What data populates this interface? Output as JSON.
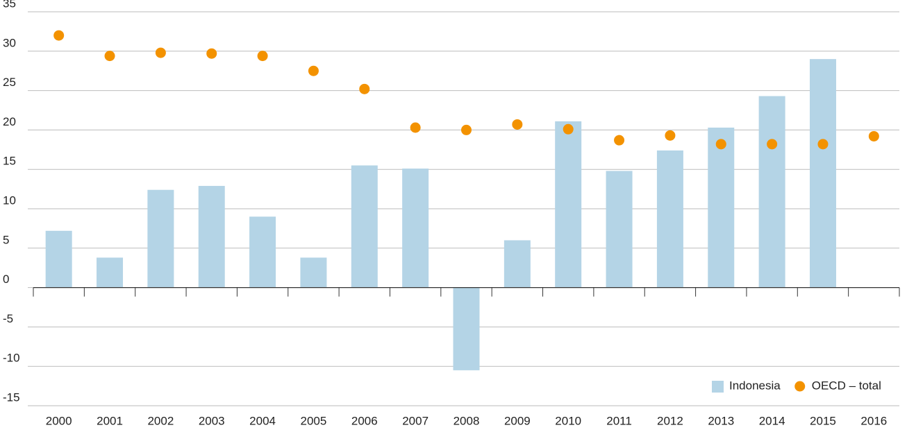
{
  "chart_data": {
    "type": "bar",
    "categories": [
      "2000",
      "2001",
      "2002",
      "2003",
      "2004",
      "2005",
      "2006",
      "2007",
      "2008",
      "2009",
      "2010",
      "2011",
      "2012",
      "2013",
      "2014",
      "2015",
      "2016"
    ],
    "series": [
      {
        "name": "Indonesia",
        "type": "bar",
        "color": "#b4d4e6",
        "values": [
          7.2,
          3.8,
          12.4,
          12.9,
          9.0,
          3.8,
          15.5,
          15.1,
          -10.5,
          6.0,
          21.1,
          14.8,
          17.4,
          20.3,
          24.3,
          29.0,
          null
        ]
      },
      {
        "name": "OECD – total",
        "type": "scatter",
        "color": "#f39200",
        "values": [
          32.0,
          29.4,
          29.8,
          29.7,
          29.4,
          27.5,
          25.2,
          20.3,
          20.0,
          20.7,
          20.1,
          18.7,
          19.3,
          18.2,
          18.2,
          18.2,
          19.2
        ]
      }
    ],
    "ylim": [
      -15,
      35
    ],
    "yticks": [
      -15,
      -10,
      -5,
      0,
      5,
      10,
      15,
      20,
      25,
      30,
      35
    ],
    "grid": true,
    "legend": "bottom-right"
  }
}
